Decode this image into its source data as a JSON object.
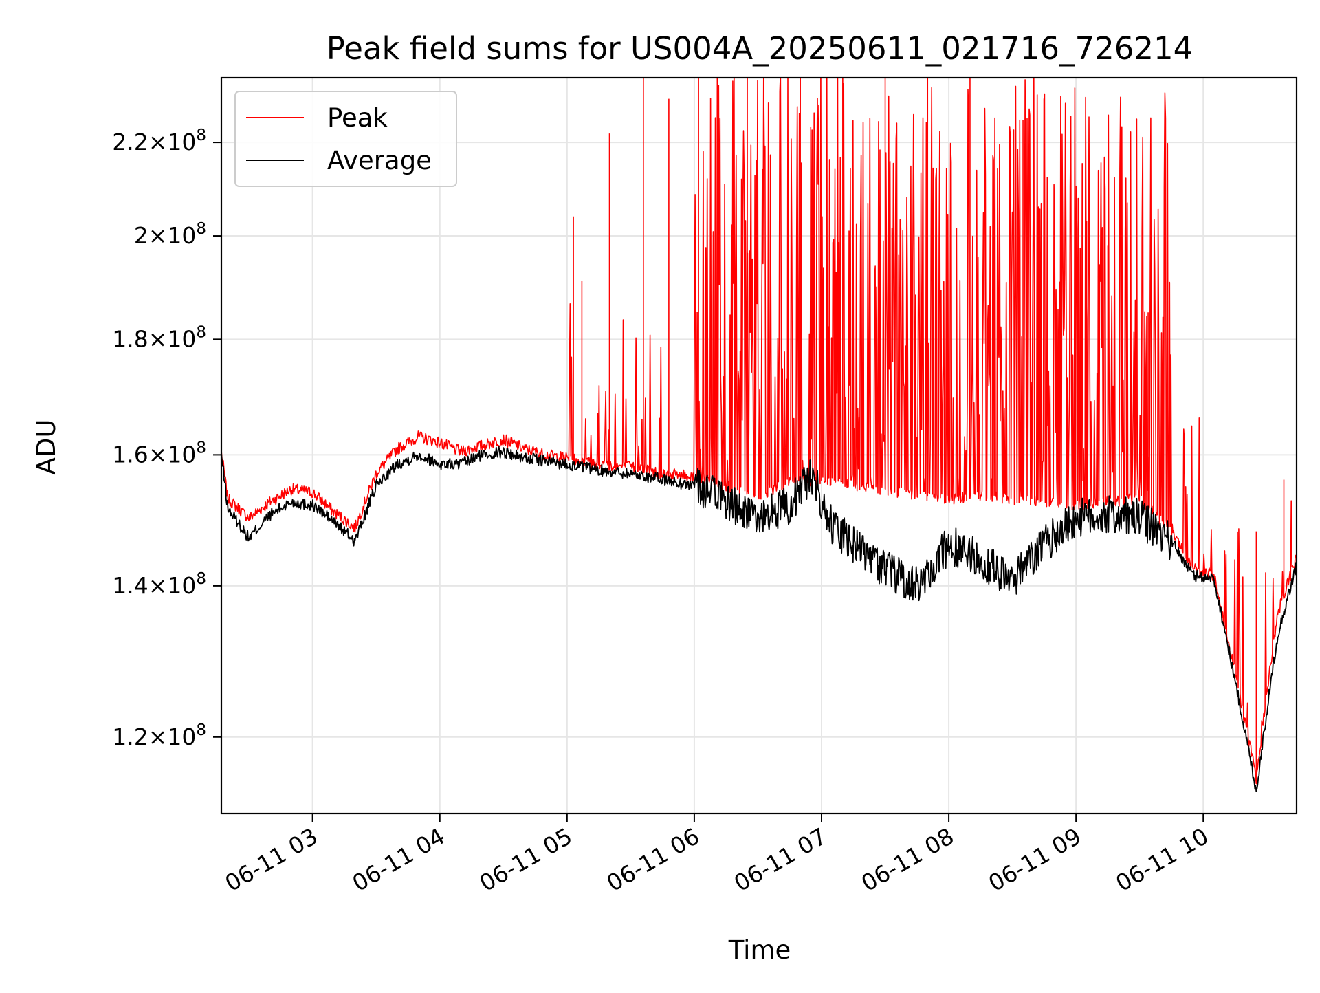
{
  "chart_data": {
    "type": "line",
    "title": "Peak field sums for US004A_20250611_021716_726214",
    "xlabel": "Time",
    "ylabel": "ADU",
    "yscale": "log",
    "xlim": [
      "06-11 02:17",
      "06-11 10:44"
    ],
    "ylim": [
      111000000,
      235000000
    ],
    "x_ticks": [
      "06-11 03",
      "06-11 04",
      "06-11 05",
      "06-11 06",
      "06-11 07",
      "06-11 08",
      "06-11 09",
      "06-11 10"
    ],
    "y_ticks": [
      {
        "value": 120000000,
        "mantissa": "1.2",
        "exponent": "8"
      },
      {
        "value": 140000000,
        "mantissa": "1.4",
        "exponent": "8"
      },
      {
        "value": 160000000,
        "mantissa": "1.6",
        "exponent": "8"
      },
      {
        "value": 180000000,
        "mantissa": "1.8",
        "exponent": "8"
      },
      {
        "value": 200000000,
        "mantissa": "2",
        "exponent": "8"
      },
      {
        "value": 220000000,
        "mantissa": "2.2",
        "exponent": "8"
      }
    ],
    "grid": true,
    "legend_position": "top-left",
    "series": [
      {
        "name": "Peak",
        "color": "#ff0000",
        "x": [
          "06-11 02:17",
          "06-11 02:20",
          "06-11 02:30",
          "06-11 02:40",
          "06-11 02:50",
          "06-11 03:00",
          "06-11 03:10",
          "06-11 03:20",
          "06-11 03:30",
          "06-11 03:40",
          "06-11 03:50",
          "06-11 04:00",
          "06-11 04:10",
          "06-11 04:20",
          "06-11 04:30",
          "06-11 04:40",
          "06-11 04:50",
          "06-11 05:00",
          "06-11 05:15",
          "06-11 05:30",
          "06-11 05:45",
          "06-11 06:00",
          "06-11 06:15",
          "06-11 06:30",
          "06-11 06:45",
          "06-11 07:00",
          "06-11 07:15",
          "06-11 07:30",
          "06-11 07:45",
          "06-11 08:00",
          "06-11 08:15",
          "06-11 08:30",
          "06-11 08:45",
          "06-11 09:00",
          "06-11 09:15",
          "06-11 09:30",
          "06-11 09:45",
          "06-11 09:55",
          "06-11 10:05",
          "06-11 10:15",
          "06-11 10:25",
          "06-11 10:35",
          "06-11 10:44"
        ],
        "y": [
          160500000,
          153000000,
          150000000,
          152500000,
          154500000,
          154000000,
          151000000,
          148500000,
          157000000,
          161000000,
          163000000,
          162000000,
          160500000,
          161500000,
          162500000,
          161000000,
          160000000,
          159500000,
          158500000,
          158000000,
          157000000,
          156500000,
          155000000,
          153500000,
          155500000,
          156000000,
          155000000,
          154500000,
          153500000,
          153000000,
          153500000,
          153000000,
          152500000,
          152000000,
          152500000,
          153000000,
          148000000,
          142500000,
          141500000,
          128000000,
          115000000,
          136000000,
          144000000
        ],
        "spikes": [
          {
            "x": "06-11 05:03",
            "y": 204000000
          },
          {
            "x": "06-11 05:07",
            "y": 191000000
          },
          {
            "x": "06-11 05:20",
            "y": 222000000
          },
          {
            "x": "06-11 05:36",
            "y": 235000000
          },
          {
            "x": "06-11 05:48",
            "y": 230000000
          },
          {
            "x": "06-11 06:02",
            "y": 235000000
          },
          {
            "x": "06-11 06:25",
            "y": 235000000
          },
          {
            "x": "06-11 06:50",
            "y": 235000000
          },
          {
            "x": "06-11 07:10",
            "y": 235000000
          },
          {
            "x": "06-11 07:30",
            "y": 235000000
          },
          {
            "x": "06-11 07:50",
            "y": 235000000
          },
          {
            "x": "06-11 08:10",
            "y": 235000000
          },
          {
            "x": "06-11 08:35",
            "y": 225000000
          },
          {
            "x": "06-11 09:05",
            "y": 203000000
          },
          {
            "x": "06-11 09:15",
            "y": 198000000
          },
          {
            "x": "06-11 09:34",
            "y": 185000000
          },
          {
            "x": "06-11 10:25",
            "y": 148000000
          },
          {
            "x": "06-11 10:38",
            "y": 156000000
          }
        ]
      },
      {
        "name": "Average",
        "color": "#000000",
        "x": [
          "06-11 02:17",
          "06-11 02:20",
          "06-11 02:30",
          "06-11 02:40",
          "06-11 02:50",
          "06-11 03:00",
          "06-11 03:10",
          "06-11 03:20",
          "06-11 03:30",
          "06-11 03:40",
          "06-11 03:50",
          "06-11 04:00",
          "06-11 04:10",
          "06-11 04:20",
          "06-11 04:30",
          "06-11 04:40",
          "06-11 04:50",
          "06-11 05:00",
          "06-11 05:15",
          "06-11 05:30",
          "06-11 05:45",
          "06-11 06:00",
          "06-11 06:15",
          "06-11 06:30",
          "06-11 06:45",
          "06-11 06:55",
          "06-11 07:05",
          "06-11 07:15",
          "06-11 07:30",
          "06-11 07:45",
          "06-11 08:00",
          "06-11 08:15",
          "06-11 08:30",
          "06-11 08:45",
          "06-11 09:00",
          "06-11 09:15",
          "06-11 09:30",
          "06-11 09:45",
          "06-11 09:55",
          "06-11 10:05",
          "06-11 10:15",
          "06-11 10:25",
          "06-11 10:35",
          "06-11 10:44"
        ],
        "y": [
          160000000,
          151500000,
          147000000,
          150500000,
          152500000,
          152000000,
          149500000,
          146500000,
          155000000,
          158500000,
          160000000,
          158500000,
          158500000,
          160000000,
          160500000,
          159500000,
          159000000,
          158500000,
          157500000,
          157000000,
          156000000,
          155000000,
          152500000,
          150000000,
          152000000,
          157000000,
          149000000,
          146000000,
          142500000,
          140000000,
          146000000,
          144000000,
          140500000,
          146000000,
          150000000,
          150500000,
          150000000,
          146500000,
          141500000,
          141000000,
          127000000,
          113500000,
          133000000,
          143000000
        ]
      }
    ]
  }
}
